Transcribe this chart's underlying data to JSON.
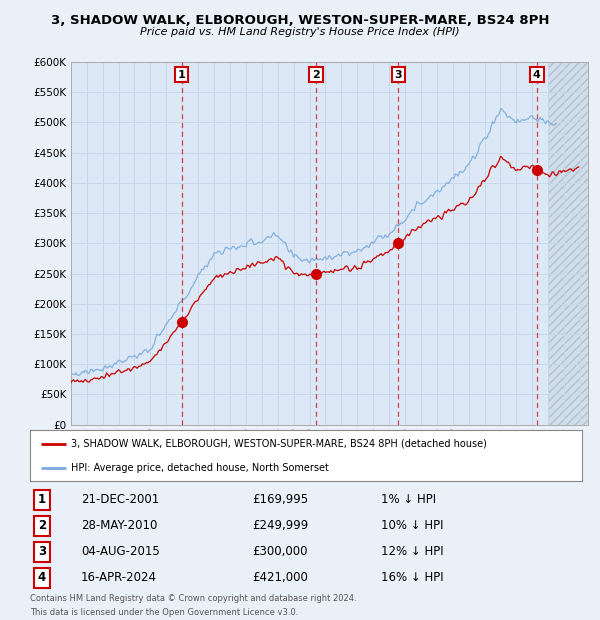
{
  "title": "3, SHADOW WALK, ELBOROUGH, WESTON-SUPER-MARE, BS24 8PH",
  "subtitle": "Price paid vs. HM Land Registry's House Price Index (HPI)",
  "ylabel_ticks": [
    "£0",
    "£50K",
    "£100K",
    "£150K",
    "£200K",
    "£250K",
    "£300K",
    "£350K",
    "£400K",
    "£450K",
    "£500K",
    "£550K",
    "£600K"
  ],
  "ytick_values": [
    0,
    50000,
    100000,
    150000,
    200000,
    250000,
    300000,
    350000,
    400000,
    450000,
    500000,
    550000,
    600000
  ],
  "ylim": [
    0,
    600000
  ],
  "xlim_start": 1995.0,
  "xlim_end": 2027.5,
  "hatch_start": 2025.0,
  "sales": [
    {
      "date_num": 2001.97,
      "price": 169995,
      "label": "1"
    },
    {
      "date_num": 2010.41,
      "price": 249999,
      "label": "2"
    },
    {
      "date_num": 2015.59,
      "price": 300000,
      "label": "3"
    },
    {
      "date_num": 2024.29,
      "price": 421000,
      "label": "4"
    }
  ],
  "sale_dates_str": [
    "21-DEC-2001",
    "28-MAY-2010",
    "04-AUG-2015",
    "16-APR-2024"
  ],
  "sale_prices_str": [
    "£169,995",
    "£249,999",
    "£300,000",
    "£421,000"
  ],
  "sale_hpi_str": [
    "1% ↓ HPI",
    "10% ↓ HPI",
    "12% ↓ HPI",
    "16% ↓ HPI"
  ],
  "legend_property": "3, SHADOW WALK, ELBOROUGH, WESTON-SUPER-MARE, BS24 8PH (detached house)",
  "legend_hpi": "HPI: Average price, detached house, North Somerset",
  "footer1": "Contains HM Land Registry data © Crown copyright and database right 2024.",
  "footer2": "This data is licensed under the Open Government Licence v3.0.",
  "property_line_color": "#cc0000",
  "hpi_line_color": "#7aabdc",
  "sale_marker_color": "#cc0000",
  "vline_color": "#cc0000",
  "grid_color": "#c8d8e8",
  "bg_color": "#eaf0f8",
  "plot_bg_color": "#dce8f5",
  "hatch_bg_color": "#d0d8e0"
}
